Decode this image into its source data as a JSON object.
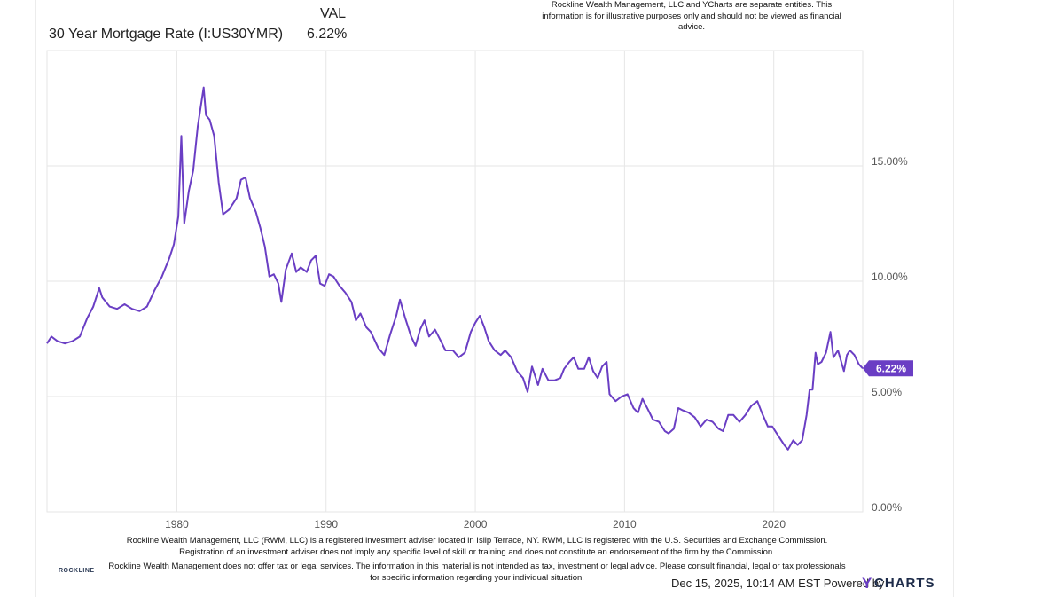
{
  "header": {
    "column_label": "VAL",
    "series_label": "30 Year Mortgage Rate (I:US30YMR)",
    "series_value": "6.22%"
  },
  "disclaimer_top": "Rockline Wealth Management, LLC and YCharts are separate entities. This information is for illustrative purposes only and should not be viewed as financial advice.",
  "disclaimer_bottom": {
    "line1": "Rockline Wealth Management, LLC (RWM, LLC) is a registered investment adviser located in Islip Terrace, NY. RWM, LLC is registered with the U.S. Securities and Exchange Commission. Registration of an investment adviser does not imply any specific level of skill or training and does not constitute an endorsement of the firm by the Commission.",
    "line2": "Rockline Wealth Management does not offer tax or legal services. The information in this material is not intended as tax, investment or legal advice. Please consult financial, legal or tax professionals for specific information regarding your individual situation."
  },
  "logo": {
    "name": "ROCKLINE"
  },
  "footer": {
    "timestamp": "Dec 15, 2025, 10:14 AM EST",
    "powered_by": "Powered by",
    "brand_y": "Y",
    "brand_rest": "CHARTS"
  },
  "colors": {
    "line": "#6a3ec4",
    "grid": "#e6e6e6",
    "axis_text": "#555555"
  },
  "chart_data": {
    "type": "line",
    "title": "",
    "xlabel": "",
    "ylabel": "",
    "xlim": [
      1971.3,
      2025.96
    ],
    "ylim": [
      0,
      20
    ],
    "grid": true,
    "y_axis_position": "right",
    "x_ticks": [
      1980,
      1990,
      2000,
      2010,
      2020
    ],
    "x_tick_labels": [
      "1980",
      "1990",
      "2000",
      "2010",
      "2020"
    ],
    "y_ticks": [
      0,
      5,
      10,
      15
    ],
    "y_tick_labels": [
      "0.00%",
      "5.00%",
      "10.00%",
      "15.00%"
    ],
    "last_value_label": "6.22%",
    "series": [
      {
        "values": [
          [
            1971.3,
            7.3
          ],
          [
            1971.6,
            7.6
          ],
          [
            1972.0,
            7.4
          ],
          [
            1972.5,
            7.3
          ],
          [
            1973.0,
            7.4
          ],
          [
            1973.5,
            7.6
          ],
          [
            1974.0,
            8.4
          ],
          [
            1974.4,
            8.9
          ],
          [
            1974.8,
            9.7
          ],
          [
            1975.0,
            9.3
          ],
          [
            1975.5,
            8.9
          ],
          [
            1976.0,
            8.8
          ],
          [
            1976.5,
            9.0
          ],
          [
            1977.0,
            8.8
          ],
          [
            1977.5,
            8.7
          ],
          [
            1978.0,
            8.9
          ],
          [
            1978.5,
            9.6
          ],
          [
            1979.0,
            10.2
          ],
          [
            1979.5,
            11.0
          ],
          [
            1979.8,
            11.6
          ],
          [
            1980.1,
            12.8
          ],
          [
            1980.3,
            16.3
          ],
          [
            1980.5,
            12.5
          ],
          [
            1980.8,
            13.9
          ],
          [
            1981.1,
            14.8
          ],
          [
            1981.4,
            16.7
          ],
          [
            1981.8,
            18.4
          ],
          [
            1981.95,
            17.2
          ],
          [
            1982.2,
            17.0
          ],
          [
            1982.5,
            16.3
          ],
          [
            1982.8,
            14.3
          ],
          [
            1983.1,
            12.9
          ],
          [
            1983.5,
            13.1
          ],
          [
            1983.8,
            13.4
          ],
          [
            1984.0,
            13.6
          ],
          [
            1984.3,
            14.4
          ],
          [
            1984.6,
            14.5
          ],
          [
            1984.9,
            13.6
          ],
          [
            1985.3,
            13.0
          ],
          [
            1985.6,
            12.3
          ],
          [
            1985.9,
            11.5
          ],
          [
            1986.2,
            10.2
          ],
          [
            1986.5,
            10.3
          ],
          [
            1986.8,
            9.9
          ],
          [
            1987.0,
            9.1
          ],
          [
            1987.3,
            10.5
          ],
          [
            1987.7,
            11.2
          ],
          [
            1988.0,
            10.4
          ],
          [
            1988.3,
            10.6
          ],
          [
            1988.7,
            10.4
          ],
          [
            1989.0,
            10.9
          ],
          [
            1989.3,
            11.1
          ],
          [
            1989.6,
            9.9
          ],
          [
            1989.9,
            9.8
          ],
          [
            1990.2,
            10.3
          ],
          [
            1990.5,
            10.2
          ],
          [
            1990.9,
            9.8
          ],
          [
            1991.3,
            9.5
          ],
          [
            1991.7,
            9.1
          ],
          [
            1992.0,
            8.3
          ],
          [
            1992.3,
            8.6
          ],
          [
            1992.7,
            8.0
          ],
          [
            1993.0,
            7.8
          ],
          [
            1993.5,
            7.1
          ],
          [
            1993.9,
            6.8
          ],
          [
            1994.3,
            7.7
          ],
          [
            1994.7,
            8.5
          ],
          [
            1994.95,
            9.2
          ],
          [
            1995.3,
            8.4
          ],
          [
            1995.7,
            7.6
          ],
          [
            1996.0,
            7.2
          ],
          [
            1996.3,
            7.9
          ],
          [
            1996.6,
            8.3
          ],
          [
            1996.9,
            7.6
          ],
          [
            1997.3,
            7.9
          ],
          [
            1997.7,
            7.4
          ],
          [
            1998.0,
            7.0
          ],
          [
            1998.5,
            7.0
          ],
          [
            1998.9,
            6.7
          ],
          [
            1999.3,
            6.9
          ],
          [
            1999.7,
            7.8
          ],
          [
            2000.0,
            8.2
          ],
          [
            2000.3,
            8.5
          ],
          [
            2000.6,
            8.0
          ],
          [
            2000.9,
            7.4
          ],
          [
            2001.3,
            7.0
          ],
          [
            2001.7,
            6.8
          ],
          [
            2002.0,
            7.0
          ],
          [
            2002.4,
            6.7
          ],
          [
            2002.8,
            6.1
          ],
          [
            2003.2,
            5.8
          ],
          [
            2003.5,
            5.2
          ],
          [
            2003.8,
            6.3
          ],
          [
            2004.2,
            5.5
          ],
          [
            2004.5,
            6.2
          ],
          [
            2004.9,
            5.7
          ],
          [
            2005.3,
            5.7
          ],
          [
            2005.7,
            5.8
          ],
          [
            2005.95,
            6.2
          ],
          [
            2006.3,
            6.5
          ],
          [
            2006.6,
            6.7
          ],
          [
            2006.9,
            6.2
          ],
          [
            2007.3,
            6.2
          ],
          [
            2007.6,
            6.7
          ],
          [
            2007.9,
            6.1
          ],
          [
            2008.2,
            5.8
          ],
          [
            2008.5,
            6.3
          ],
          [
            2008.8,
            6.5
          ],
          [
            2009.0,
            5.1
          ],
          [
            2009.4,
            4.8
          ],
          [
            2009.8,
            5.0
          ],
          [
            2010.2,
            5.1
          ],
          [
            2010.6,
            4.5
          ],
          [
            2010.9,
            4.3
          ],
          [
            2011.2,
            4.9
          ],
          [
            2011.6,
            4.4
          ],
          [
            2011.9,
            4.0
          ],
          [
            2012.3,
            3.9
          ],
          [
            2012.7,
            3.5
          ],
          [
            2012.95,
            3.4
          ],
          [
            2013.3,
            3.6
          ],
          [
            2013.6,
            4.5
          ],
          [
            2013.9,
            4.4
          ],
          [
            2014.3,
            4.3
          ],
          [
            2014.7,
            4.1
          ],
          [
            2015.1,
            3.7
          ],
          [
            2015.5,
            4.0
          ],
          [
            2015.9,
            3.9
          ],
          [
            2016.3,
            3.6
          ],
          [
            2016.6,
            3.5
          ],
          [
            2016.95,
            4.2
          ],
          [
            2017.3,
            4.2
          ],
          [
            2017.7,
            3.9
          ],
          [
            2018.1,
            4.2
          ],
          [
            2018.5,
            4.6
          ],
          [
            2018.9,
            4.8
          ],
          [
            2019.2,
            4.3
          ],
          [
            2019.6,
            3.7
          ],
          [
            2019.9,
            3.7
          ],
          [
            2020.3,
            3.3
          ],
          [
            2020.7,
            2.9
          ],
          [
            2020.95,
            2.7
          ],
          [
            2021.3,
            3.1
          ],
          [
            2021.6,
            2.9
          ],
          [
            2021.9,
            3.1
          ],
          [
            2022.2,
            4.2
          ],
          [
            2022.4,
            5.3
          ],
          [
            2022.6,
            5.3
          ],
          [
            2022.8,
            6.9
          ],
          [
            2022.95,
            6.4
          ],
          [
            2023.2,
            6.5
          ],
          [
            2023.5,
            6.9
          ],
          [
            2023.8,
            7.8
          ],
          [
            2024.0,
            6.7
          ],
          [
            2024.3,
            7.0
          ],
          [
            2024.7,
            6.1
          ],
          [
            2024.9,
            6.8
          ],
          [
            2025.1,
            7.0
          ],
          [
            2025.4,
            6.8
          ],
          [
            2025.7,
            6.4
          ],
          [
            2025.96,
            6.22
          ]
        ]
      }
    ]
  }
}
